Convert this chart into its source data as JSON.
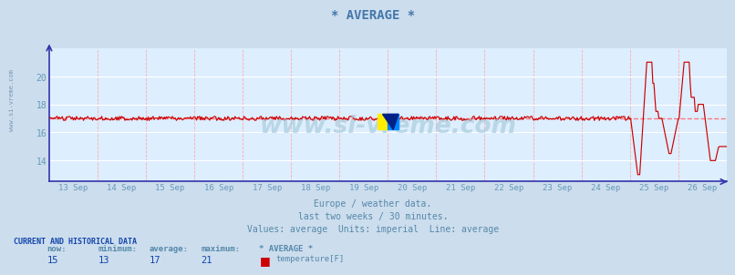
{
  "title": "* AVERAGE *",
  "subtitle1": "Europe / weather data.",
  "subtitle2": "last two weeks / 30 minutes.",
  "subtitle3": "Values: average  Units: imperial  Line: average",
  "watermark": "www.si-vreme.com",
  "xlabels": [
    "13 Sep",
    "14 Sep",
    "15 Sep",
    "16 Sep",
    "17 Sep",
    "18 Sep",
    "19 Sep",
    "20 Sep",
    "21 Sep",
    "22 Sep",
    "23 Sep",
    "24 Sep",
    "25 Sep",
    "26 Sep"
  ],
  "ylim": [
    12.5,
    22.0
  ],
  "yticks": [
    14,
    16,
    18,
    20
  ],
  "avg_line_y": 17.0,
  "bg_color": "#ccdded",
  "plot_bg_color": "#ddeeff",
  "grid_color_h": "#ffffff",
  "grid_color_v": "#ffaaaa",
  "line_color": "#cc0000",
  "avg_line_color": "#ff6666",
  "title_color": "#4477aa",
  "axis_color": "#3333aa",
  "label_color": "#6699bb",
  "current_label_color": "#1144aa",
  "text_color": "#5588aa",
  "now_val": "15",
  "min_val": "13",
  "avg_val": "17",
  "max_val": "21",
  "series_label": "* AVERAGE *",
  "unit_label": "temperature[F]",
  "current_data_label": "CURRENT AND HISTORICAL DATA",
  "col_headers": [
    "now:",
    "minimum:",
    "average:",
    "maximum:"
  ]
}
